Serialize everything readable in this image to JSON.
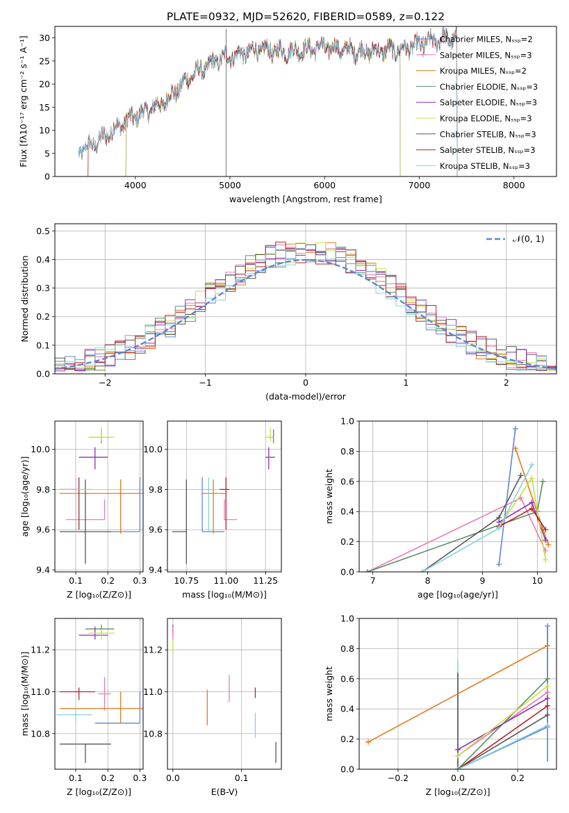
{
  "chart_data": [
    {
      "type": "line",
      "title": "PLATE=0932, MJD=52620, FIBERID=0589, z=0.122",
      "xlabel": "wavelength [Angstrom, rest frame]",
      "ylabel": "Flux [fλ10⁻¹⁷ erg cm⁻² s⁻¹ A⁻¹]",
      "xlim": [
        3150,
        8450
      ],
      "ylim": [
        0,
        32.5
      ],
      "xticks": [
        "4000",
        "5000",
        "6000",
        "7000",
        "8000"
      ],
      "yticks": [
        "0",
        "5",
        "10",
        "15",
        "20",
        "25",
        "30"
      ],
      "legend_position": "top-right",
      "legend": [
        "Chabrier MILES, Nₛₛₚ=2",
        "Salpeter MILES, Nₛₛₚ=3",
        "Kroupa MILES, Nₛₛₚ=2",
        "Chabrier ELODIE, Nₛₛₚ=3",
        "Salpeter ELODIE, Nₛₛₚ=3",
        "Kroupa ELODIE, Nₛₛₚ=3",
        "Chabrier STELIB, Nₛₛₚ=3",
        "Salpeter STELIB, Nₛₛₚ=3",
        "Kroupa STELIB, Nₛₛₚ=3"
      ],
      "continuum_anchor": {
        "x": [
          3400,
          3600,
          3900,
          4100,
          4300,
          4600,
          4900,
          5300,
          5600,
          6000,
          6400,
          6800,
          7200,
          7400
        ],
        "y": [
          5.5,
          7.5,
          12,
          14,
          16,
          22,
          25.5,
          27.5,
          27,
          28,
          27,
          27.5,
          29.5,
          30
        ]
      },
      "model_ranges": [
        [
          3400,
          7400
        ],
        [
          3500,
          7400
        ],
        [
          3500,
          7400
        ],
        [
          3900,
          6800
        ],
        [
          3900,
          6800
        ],
        [
          3900,
          6800
        ],
        [
          3400,
          7400
        ],
        [
          3500,
          7400
        ],
        [
          3400,
          7400
        ]
      ],
      "spikes": [
        [
          4960,
          32
        ],
        [
          4955,
          2.3
        ]
      ]
    },
    {
      "type": "bar",
      "xlabel": "(data-model)/error",
      "ylabel": "Normed distribution",
      "xlim": [
        -2.5,
        2.5
      ],
      "ylim": [
        0,
        0.525
      ],
      "xticks": [
        "−2",
        "−1",
        "0",
        "1",
        "2"
      ],
      "yticks": [
        "0.0",
        "0.1",
        "0.2",
        "0.3",
        "0.4",
        "0.5"
      ],
      "legend_position": "top-right",
      "gaussian_label": "𝒩(0, 1)",
      "series_label": "normal reference N(0,1) plus 9 step histograms"
    },
    {
      "type": "scatter",
      "xlabel": "Z [log₁₀(Z/Z⊙)]",
      "ylabel": "age  [log₁₀(age/yr)]",
      "xlim": [
        0.035,
        0.31
      ],
      "ylim": [
        9.39,
        10.14
      ],
      "xticks": [
        "0.1",
        "0.2",
        "0.3"
      ],
      "yticks": [
        "9.4",
        "9.6",
        "9.8",
        "10.0"
      ],
      "points": [
        {
          "x": 0.3,
          "y": 9.59,
          "xerr": [
            0.1,
            0.0
          ],
          "yerr": [
            0.0,
            0.27
          ],
          "color": "#5a86d6"
        },
        {
          "x": 0.19,
          "y": 9.65,
          "xerr": [
            0.12,
            0.0
          ],
          "yerr": [
            0.0,
            0.1
          ],
          "color": "#e67aba"
        },
        {
          "x": 0.24,
          "y": 9.78,
          "xerr": [
            0.19,
            0.07
          ],
          "yerr": [
            0.2,
            0.07
          ],
          "color": "#e07b1b"
        },
        {
          "x": 0.18,
          "y": 10.06,
          "xerr": [
            0.04,
            0.03
          ],
          "yerr": [
            0.03,
            0.04
          ],
          "color": "#5c8c60"
        },
        {
          "x": 0.16,
          "y": 9.96,
          "xerr": [
            0.05,
            0.04
          ],
          "yerr": [
            0.06,
            0.05
          ],
          "color": "#8f2fb1"
        },
        {
          "x": 0.18,
          "y": 10.06,
          "xerr": [
            0.04,
            0.04
          ],
          "yerr": [
            0.02,
            0.05
          ],
          "color": "#c9e041"
        },
        {
          "x": 0.13,
          "y": 9.59,
          "xerr": [
            0.08,
            0.08
          ],
          "yerr": [
            0.16,
            0.26
          ],
          "color": "#555555"
        },
        {
          "x": 0.11,
          "y": 9.8,
          "xerr": [
            0.06,
            0.0
          ],
          "yerr": [
            0.2,
            0.06
          ],
          "color": "#b52226"
        },
        {
          "x": 0.1,
          "y": 9.8,
          "xerr": [
            0.05,
            0.05
          ],
          "yerr": [
            0.21,
            0.06
          ],
          "color": "#88cfdf"
        }
      ]
    },
    {
      "type": "scatter",
      "xlabel": "mass [log₁₀(M/M⊙)]",
      "ylabel": "",
      "xlim": [
        10.63,
        11.35
      ],
      "ylim": [
        9.39,
        10.14
      ],
      "xticks": [
        "10.75",
        "11.00",
        "11.25"
      ],
      "yticks": [
        "9.4",
        "9.6",
        "9.8",
        "10.0"
      ],
      "points": [
        {
          "x": 10.85,
          "y": 9.59,
          "xerr": [
            0.0,
            0.14
          ],
          "yerr": [
            0.0,
            0.27
          ],
          "color": "#5a86d6"
        },
        {
          "x": 10.99,
          "y": 9.65,
          "xerr": [
            0.0,
            0.08
          ],
          "yerr": [
            0.0,
            0.1
          ],
          "color": "#e67aba"
        },
        {
          "x": 10.92,
          "y": 9.78,
          "xerr": [
            0.07,
            0.08
          ],
          "yerr": [
            0.2,
            0.07
          ],
          "color": "#e07b1b"
        },
        {
          "x": 11.3,
          "y": 10.06,
          "xerr": [
            0.04,
            0.0
          ],
          "yerr": [
            0.03,
            0.04
          ],
          "color": "#5c8c60"
        },
        {
          "x": 11.27,
          "y": 9.96,
          "xerr": [
            0.02,
            0.04
          ],
          "yerr": [
            0.06,
            0.05
          ],
          "color": "#8f2fb1"
        },
        {
          "x": 11.28,
          "y": 10.06,
          "xerr": [
            0.03,
            0.02
          ],
          "yerr": [
            0.02,
            0.05
          ],
          "color": "#c9e041"
        },
        {
          "x": 10.75,
          "y": 9.59,
          "xerr": [
            0.09,
            0.0
          ],
          "yerr": [
            0.16,
            0.26
          ],
          "color": "#555555"
        },
        {
          "x": 11.0,
          "y": 9.8,
          "xerr": [
            0.04,
            0.02
          ],
          "yerr": [
            0.2,
            0.06
          ],
          "color": "#b52226"
        },
        {
          "x": 10.89,
          "y": 9.8,
          "xerr": [
            0.04,
            0.02
          ],
          "yerr": [
            0.21,
            0.06
          ],
          "color": "#88cfdf"
        }
      ]
    },
    {
      "type": "line",
      "xlabel": "age  [log₁₀(age/yr)]",
      "ylabel": "mass weight",
      "xlim": [
        6.75,
        10.35
      ],
      "ylim": [
        0,
        1
      ],
      "xticks": [
        "7",
        "8",
        "9",
        "10"
      ],
      "yticks": [
        "0.0",
        "0.2",
        "0.4",
        "0.6",
        "0.8",
        "1.0"
      ],
      "series": [
        {
          "color": "#5a86d6",
          "x": [
            9.3,
            9.6
          ],
          "y": [
            0.05,
            0.95
          ]
        },
        {
          "color": "#e67aba",
          "x": [
            6.9,
            9.7,
            10.15
          ],
          "y": [
            0.0,
            0.49,
            0.14
          ]
        },
        {
          "color": "#e07b1b",
          "x": [
            9.6,
            10.2
          ],
          "y": [
            0.82,
            0.18
          ]
        },
        {
          "color": "#5c8c60",
          "x": [
            6.9,
            10.0,
            10.1
          ],
          "y": [
            0.0,
            0.4,
            0.6
          ]
        },
        {
          "color": "#8f2fb1",
          "x": [
            9.3,
            9.9,
            10.15
          ],
          "y": [
            0.33,
            0.46,
            0.21
          ]
        },
        {
          "color": "#c9e041",
          "x": [
            9.3,
            9.9,
            10.15
          ],
          "y": [
            0.3,
            0.62,
            0.08
          ]
        },
        {
          "color": "#555555",
          "x": [
            7.9,
            9.3,
            9.7
          ],
          "y": [
            0.0,
            0.36,
            0.64
          ]
        },
        {
          "color": "#b52226",
          "x": [
            9.3,
            9.9,
            10.15
          ],
          "y": [
            0.3,
            0.42,
            0.28
          ]
        },
        {
          "color": "#88cfdf",
          "x": [
            7.9,
            9.3,
            9.9
          ],
          "y": [
            0.0,
            0.29,
            0.71
          ]
        }
      ]
    },
    {
      "type": "scatter",
      "xlabel": "Z [log₁₀(Z/Z⊙)]",
      "ylabel": "mass [log₁₀(M/M⊙)]",
      "xlim": [
        0.035,
        0.31
      ],
      "ylim": [
        10.63,
        11.35
      ],
      "xticks": [
        "0.1",
        "0.2",
        "0.3"
      ],
      "yticks": [
        "10.8",
        "11.0",
        "11.2"
      ],
      "points": [
        {
          "x": 0.3,
          "y": 10.85,
          "xerr": [
            0.14,
            0.0
          ],
          "yerr": [
            0.0,
            0.15
          ],
          "color": "#5a86d6"
        },
        {
          "x": 0.19,
          "y": 10.99,
          "xerr": [
            0.02,
            0.02
          ],
          "yerr": [
            0.08,
            0.08
          ],
          "color": "#e67aba"
        },
        {
          "x": 0.24,
          "y": 10.92,
          "xerr": [
            0.19,
            0.07
          ],
          "yerr": [
            0.07,
            0.08
          ],
          "color": "#e07b1b"
        },
        {
          "x": 0.18,
          "y": 11.3,
          "xerr": [
            0.05,
            0.04
          ],
          "yerr": [
            0.02,
            0.02
          ],
          "color": "#5c8c60"
        },
        {
          "x": 0.16,
          "y": 11.27,
          "xerr": [
            0.05,
            0.04
          ],
          "yerr": [
            0.02,
            0.04
          ],
          "color": "#8f2fb1"
        },
        {
          "x": 0.18,
          "y": 11.28,
          "xerr": [
            0.04,
            0.04
          ],
          "yerr": [
            0.03,
            0.02
          ],
          "color": "#c9e041"
        },
        {
          "x": 0.13,
          "y": 10.75,
          "xerr": [
            0.08,
            0.08
          ],
          "yerr": [
            0.09,
            0.0
          ],
          "color": "#555555"
        },
        {
          "x": 0.11,
          "y": 11.0,
          "xerr": [
            0.06,
            0.05
          ],
          "yerr": [
            0.04,
            0.02
          ],
          "color": "#b52226"
        },
        {
          "x": 0.1,
          "y": 10.89,
          "xerr": [
            0.06,
            0.05
          ],
          "yerr": [
            0.04,
            0.02
          ],
          "color": "#88cfdf"
        }
      ]
    },
    {
      "type": "scatter",
      "xlabel": "E(B-V)",
      "ylabel": "",
      "xlim": [
        -0.008,
        0.158
      ],
      "ylim": [
        10.63,
        11.35
      ],
      "xticks": [
        "0.0",
        "0.1"
      ],
      "yticks": [
        "10.8",
        "11.0",
        "11.2"
      ],
      "points": [
        {
          "x": 0.0,
          "y": 11.25,
          "yerr": [
            0.07,
            0.0
          ],
          "color": "#c9e041"
        },
        {
          "x": 0.0,
          "y": 11.29,
          "yerr": [
            0.02,
            0.03
          ],
          "color": "#8f2fb1"
        },
        {
          "x": 0.0,
          "y": 11.27,
          "yerr": [
            0.02,
            0.04
          ],
          "color": "#e67aba"
        },
        {
          "x": 0.05,
          "y": 10.92,
          "yerr": [
            0.08,
            0.09
          ],
          "color": "#e07b1b"
        },
        {
          "x": 0.082,
          "y": 11.0,
          "yerr": [
            0.05,
            0.08
          ],
          "color": "#e67aba"
        },
        {
          "x": 0.12,
          "y": 11.0,
          "yerr": [
            0.03,
            0.02
          ],
          "color": "#b52226"
        },
        {
          "x": 0.12,
          "y": 10.84,
          "yerr": [
            0.06,
            0.06
          ],
          "color": "#88cfdf"
        },
        {
          "x": 0.15,
          "y": 10.7,
          "yerr": [
            0.04,
            0.06
          ],
          "color": "#555555"
        }
      ]
    },
    {
      "type": "line",
      "xlabel": "Z [log₁₀(Z/Z⊙)]",
      "ylabel": "mass weight",
      "xlim": [
        -0.33,
        0.33
      ],
      "ylim": [
        0,
        1
      ],
      "xticks": [
        "−0.2",
        "0.0",
        "0.2"
      ],
      "yticks": [
        "0.0",
        "0.2",
        "0.4",
        "0.6",
        "0.8",
        "1.0"
      ],
      "series": [
        {
          "color": "#5a86d6",
          "x": [
            0.0,
            0.3,
            0.3
          ],
          "y": [
            0.0,
            0.28,
            0.95
          ]
        },
        {
          "color": "#e67aba",
          "x": [
            0.0,
            0.3
          ],
          "y": [
            0.09,
            0.51
          ]
        },
        {
          "color": "#e07b1b",
          "x": [
            -0.3,
            0.3
          ],
          "y": [
            0.18,
            0.82
          ]
        },
        {
          "color": "#5c8c60",
          "x": [
            0.0,
            0.3
          ],
          "y": [
            0.0,
            0.6
          ]
        },
        {
          "color": "#8f2fb1",
          "x": [
            0.0,
            0.3
          ],
          "y": [
            0.13,
            0.47
          ]
        },
        {
          "color": "#c9e041",
          "x": [
            0.0,
            0.3
          ],
          "y": [
            0.09,
            0.55
          ]
        },
        {
          "color": "#555555",
          "x": [
            0.0,
            0.3
          ],
          "y": [
            0.0,
            0.36
          ]
        },
        {
          "color": "#b52226",
          "x": [
            0.0,
            0.3
          ],
          "y": [
            0.0,
            0.42
          ]
        },
        {
          "color": "#88cfdf",
          "x": [
            0.0,
            0.3
          ],
          "y": [
            0.0,
            0.29
          ]
        }
      ],
      "vertical_marks": [
        {
          "x": 0.0,
          "y": [
            0.0,
            0.72
          ],
          "color": "#88cfdf"
        },
        {
          "x": 0.0,
          "y": [
            0.0,
            0.64
          ],
          "color": "#555555"
        },
        {
          "x": 0.3,
          "y": [
            0.05,
            0.95
          ],
          "color": "#5a86d6"
        }
      ]
    }
  ],
  "colors": [
    "#5a86d6",
    "#e67aba",
    "#e07b1b",
    "#5c8c60",
    "#8f2fb1",
    "#c9e041",
    "#555555",
    "#b52226",
    "#88cfdf"
  ]
}
